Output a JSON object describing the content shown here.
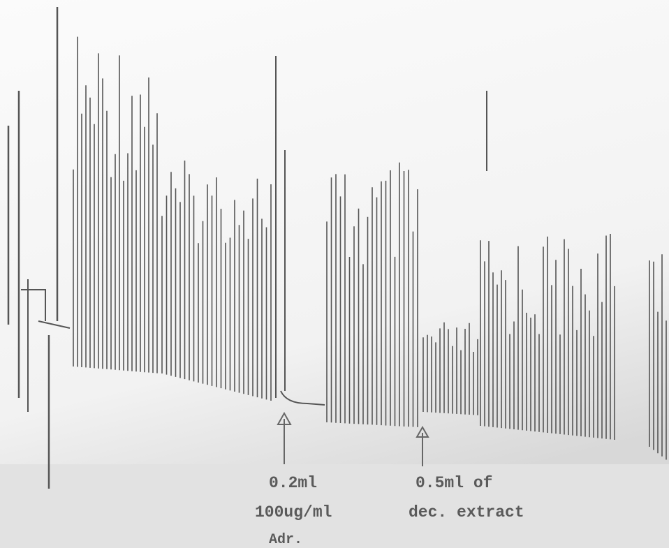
{
  "annotations": [
    {
      "lines": [
        "0.2ml",
        "100ug/ml",
        "Adr."
      ]
    },
    {
      "lines": [
        "0.5ml of",
        "dec. extract"
      ]
    }
  ]
}
